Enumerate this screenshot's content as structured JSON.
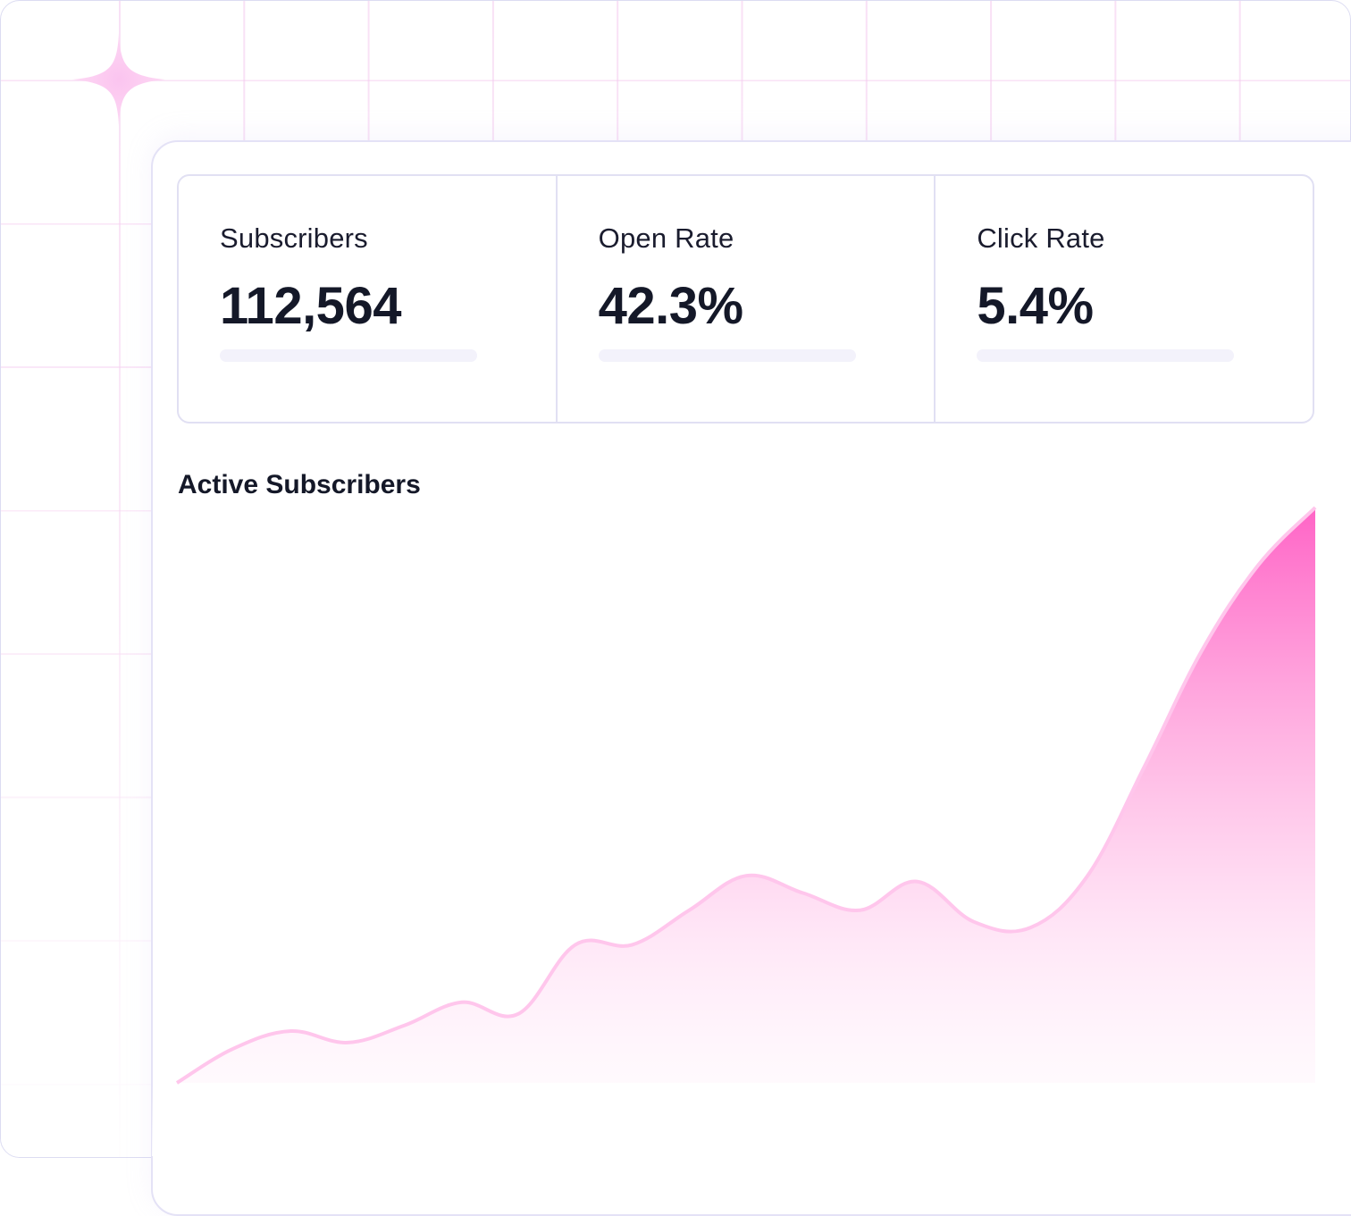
{
  "stats": [
    {
      "label": "Subscribers",
      "value": "112,564"
    },
    {
      "label": "Open Rate",
      "value": "42.3%"
    },
    {
      "label": "Click Rate",
      "value": "5.4%"
    }
  ],
  "chart": {
    "title": "Active Subscribers",
    "accent_color": "#ff66c8"
  },
  "chart_data": {
    "type": "area",
    "title": "Active Subscribers",
    "xlabel": "",
    "ylabel": "",
    "x": [
      0,
      1,
      2,
      3,
      4,
      5,
      6,
      7,
      8,
      9,
      10,
      11,
      12,
      13,
      14,
      15,
      16,
      17,
      18,
      19,
      20
    ],
    "series": [
      {
        "values": [
          0,
          6,
          9,
          7,
          10,
          14,
          12,
          24,
          24,
          30,
          36,
          33,
          30,
          35,
          28,
          27,
          36,
          55,
          75,
          90,
          100
        ]
      }
    ],
    "ylim": [
      0,
      100
    ],
    "grid": false,
    "legend": "none"
  }
}
